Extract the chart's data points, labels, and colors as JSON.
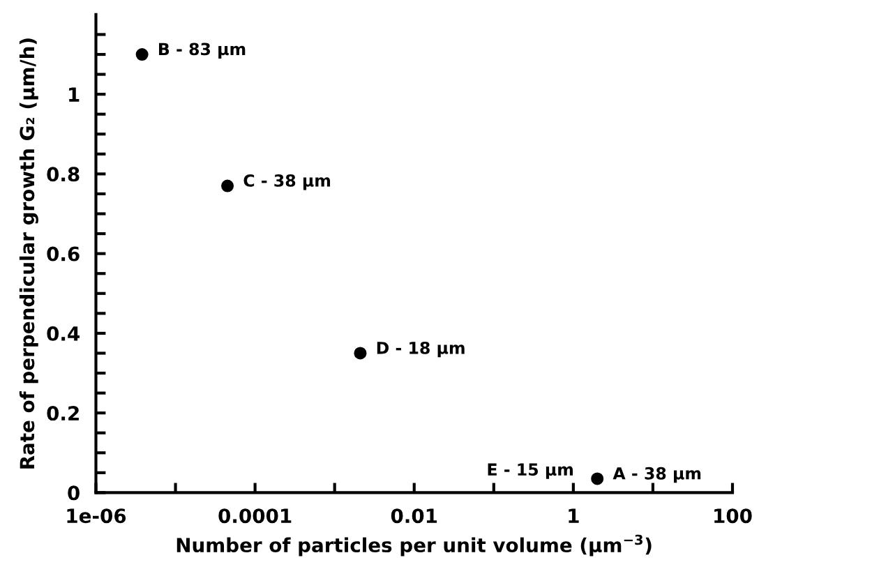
{
  "chart_data": {
    "type": "scatter",
    "xlabel": "Number of particles per unit volume (µm$^{−3}$)",
    "ylabel": "Rate of perpendicular growth G₂ (µm/h)",
    "x": [
      2.0,
      3.8e-06,
      4.5e-05,
      0.0021
    ],
    "series": [
      {
        "color": "#000000",
        "values": [
          0.035,
          1.1,
          0.77,
          0.35
        ]
      }
    ],
    "annotations": [
      {
        "text": "A - 38 µm",
        "x": 2.0,
        "y": 0.035
      },
      {
        "text": "B - 83 µm",
        "x": 3.8e-06,
        "y": 1.1
      },
      {
        "text": "C - 38 µm",
        "x": 4.5e-05,
        "y": 0.77
      },
      {
        "text": "D - 18 µm",
        "x": 0.0021,
        "y": 0.35
      },
      {
        "text": "E - 15 µm",
        "x": 2.0,
        "y": 0.035
      }
    ],
    "log": "x",
    "marker": "circle",
    "grid": false,
    "legend": false,
    "xlim": [
      1e-06,
      100
    ],
    "ylim": [
      0,
      1.2
    ],
    "xticks": [
      {
        "value": 1e-06,
        "label": "1e-06"
      },
      {
        "value": 1e-05,
        "label": null
      },
      {
        "value": 0.0001,
        "label": "0.0001"
      },
      {
        "value": 0.001,
        "label": null
      },
      {
        "value": 0.01,
        "label": "0.01"
      },
      {
        "value": 0.1,
        "label": null
      },
      1,
      {
        "value": 10,
        "label": null
      },
      100
    ],
    "yticks": [
      0,
      {
        "value": 0.05,
        "label": null
      },
      {
        "value": 0.1,
        "label": null
      },
      {
        "value": 0.15,
        "label": null
      },
      0.2,
      {
        "value": 0.25,
        "label": null
      },
      {
        "value": 0.3,
        "label": null
      },
      {
        "value": 0.35,
        "label": null
      },
      0.4,
      {
        "value": 0.45,
        "label": null
      },
      {
        "value": 0.5,
        "label": null
      },
      {
        "value": 0.55,
        "label": null
      },
      0.6,
      {
        "value": 0.65,
        "label": null
      },
      {
        "value": 0.7,
        "label": null
      },
      {
        "value": 0.75,
        "label": null
      },
      0.8,
      {
        "value": 0.85,
        "label": null
      },
      {
        "value": 0.9,
        "label": null
      },
      {
        "value": 0.95,
        "label": null
      },
      1,
      {
        "value": 1.05,
        "label": null
      },
      {
        "value": 1.1,
        "label": null
      },
      {
        "value": 1.15,
        "label": null
      }
    ]
  }
}
